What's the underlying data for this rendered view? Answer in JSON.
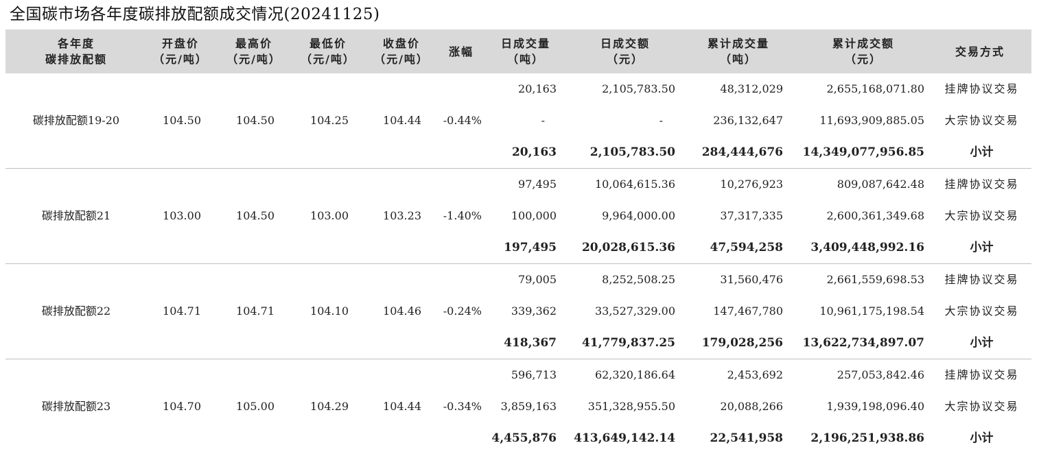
{
  "title": "全国碳市场各年度碳排放配额成交情况(20241125)",
  "headers": [
    {
      "l1": "各年度",
      "l2": "碳排放配额"
    },
    {
      "l1": "开盘价",
      "l2": "（元/吨）"
    },
    {
      "l1": "最高价",
      "l2": "（元/吨）"
    },
    {
      "l1": "最低价",
      "l2": "（元/吨）"
    },
    {
      "l1": "收盘价",
      "l2": "（元/吨）"
    },
    {
      "l1": "涨幅",
      "l2": ""
    },
    {
      "l1": "日成交量",
      "l2": "（吨）"
    },
    {
      "l1": "日成交额",
      "l2": "（元）"
    },
    {
      "l1": "累计成交量",
      "l2": "（吨）"
    },
    {
      "l1": "累计成交额",
      "l2": "（元）"
    },
    {
      "l1": "交易方式",
      "l2": ""
    }
  ],
  "groups": [
    {
      "name": "碳排放配额19-20",
      "open": "104.50",
      "high": "104.50",
      "low": "104.25",
      "close": "104.44",
      "change": "-0.44%",
      "rows": [
        {
          "vol": "20,163",
          "amt": "2,105,783.50",
          "cum_vol": "48,312,029",
          "cum_amt": "2,655,168,071.80",
          "method": "挂牌协议交易"
        },
        {
          "vol": "-",
          "amt": "-",
          "cum_vol": "236,132,647",
          "cum_amt": "11,693,909,885.05",
          "method": "大宗协议交易"
        },
        {
          "vol": "20,163",
          "amt": "2,105,783.50",
          "cum_vol": "284,444,676",
          "cum_amt": "14,349,077,956.85",
          "method": "小计"
        }
      ]
    },
    {
      "name": "碳排放配额21",
      "open": "103.00",
      "high": "104.50",
      "low": "103.00",
      "close": "103.23",
      "change": "-1.40%",
      "rows": [
        {
          "vol": "97,495",
          "amt": "10,064,615.36",
          "cum_vol": "10,276,923",
          "cum_amt": "809,087,642.48",
          "method": "挂牌协议交易"
        },
        {
          "vol": "100,000",
          "amt": "9,964,000.00",
          "cum_vol": "37,317,335",
          "cum_amt": "2,600,361,349.68",
          "method": "大宗协议交易"
        },
        {
          "vol": "197,495",
          "amt": "20,028,615.36",
          "cum_vol": "47,594,258",
          "cum_amt": "3,409,448,992.16",
          "method": "小计"
        }
      ]
    },
    {
      "name": "碳排放配额22",
      "open": "104.71",
      "high": "104.71",
      "low": "104.10",
      "close": "104.46",
      "change": "-0.24%",
      "rows": [
        {
          "vol": "79,005",
          "amt": "8,252,508.25",
          "cum_vol": "31,560,476",
          "cum_amt": "2,661,559,698.53",
          "method": "挂牌协议交易"
        },
        {
          "vol": "339,362",
          "amt": "33,527,329.00",
          "cum_vol": "147,467,780",
          "cum_amt": "10,961,175,198.54",
          "method": "大宗协议交易"
        },
        {
          "vol": "418,367",
          "amt": "41,779,837.25",
          "cum_vol": "179,028,256",
          "cum_amt": "13,622,734,897.07",
          "method": "小计"
        }
      ]
    },
    {
      "name": "碳排放配额23",
      "open": "104.70",
      "high": "105.00",
      "low": "104.29",
      "close": "104.44",
      "change": "-0.34%",
      "rows": [
        {
          "vol": "596,713",
          "amt": "62,320,186.64",
          "cum_vol": "2,453,692",
          "cum_amt": "257,053,842.46",
          "method": "挂牌协议交易"
        },
        {
          "vol": "3,859,163",
          "amt": "351,328,955.50",
          "cum_vol": "20,088,266",
          "cum_amt": "1,939,198,096.40",
          "method": "大宗协议交易"
        },
        {
          "vol": "4,455,876",
          "amt": "413,649,142.14",
          "cum_vol": "22,541,958",
          "cum_amt": "2,196,251,938.86",
          "method": "小计"
        }
      ]
    }
  ]
}
